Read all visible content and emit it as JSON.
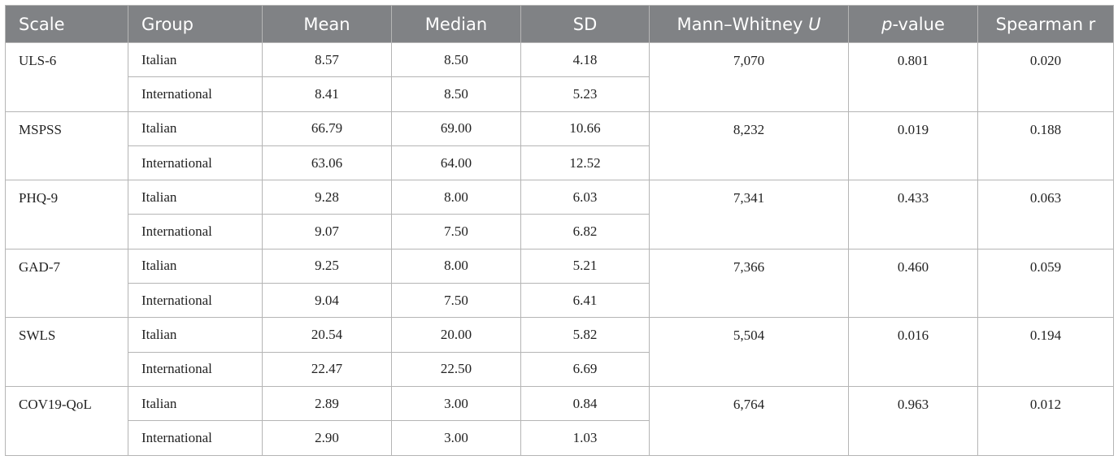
{
  "table": {
    "header": [
      "Scale",
      "Group",
      "Mean",
      "Median",
      "SD",
      [
        {
          "text": "Mann–Whitney "
        },
        {
          "text": "U",
          "style": "italic"
        }
      ],
      [
        {
          "text": "p",
          "style": "italic"
        },
        {
          "text": "-value"
        }
      ],
      "Spearman r"
    ],
    "rows": [
      {
        "scale": "ULS-6",
        "u": "7,070",
        "p": "0.801",
        "r": "0.020",
        "groups": [
          [
            "Italian",
            "8.57",
            "8.50",
            "4.18"
          ],
          [
            "International",
            "8.41",
            "8.50",
            "5.23"
          ]
        ]
      },
      {
        "scale": "MSPSS",
        "u": "8,232",
        "p": "0.019",
        "r": "0.188",
        "groups": [
          [
            "Italian",
            "66.79",
            "69.00",
            "10.66"
          ],
          [
            "International",
            "63.06",
            "64.00",
            "12.52"
          ]
        ]
      },
      {
        "scale": "PHQ-9",
        "u": "7,341",
        "p": "0.433",
        "r": "0.063",
        "groups": [
          [
            "Italian",
            "9.28",
            "8.00",
            "6.03"
          ],
          [
            "International",
            "9.07",
            "7.50",
            "6.82"
          ]
        ]
      },
      {
        "scale": "GAD-7",
        "u": "7,366",
        "p": "0.460",
        "r": "0.059",
        "groups": [
          [
            "Italian",
            "9.25",
            "8.00",
            "5.21"
          ],
          [
            "International",
            "9.04",
            "7.50",
            "6.41"
          ]
        ]
      },
      {
        "scale": "SWLS",
        "u": "5,504",
        "p": "0.016",
        "r": "0.194",
        "groups": [
          [
            "Italian",
            "20.54",
            "20.00",
            "5.82"
          ],
          [
            "International",
            "22.47",
            "22.50",
            "6.69"
          ]
        ]
      },
      {
        "scale": "COV19-QoL",
        "u": "6,764",
        "p": "0.963",
        "r": "0.012",
        "groups": [
          [
            "Italian",
            "2.89",
            "3.00",
            "0.84"
          ],
          [
            "International",
            "2.90",
            "3.00",
            "1.03"
          ]
        ]
      }
    ]
  }
}
